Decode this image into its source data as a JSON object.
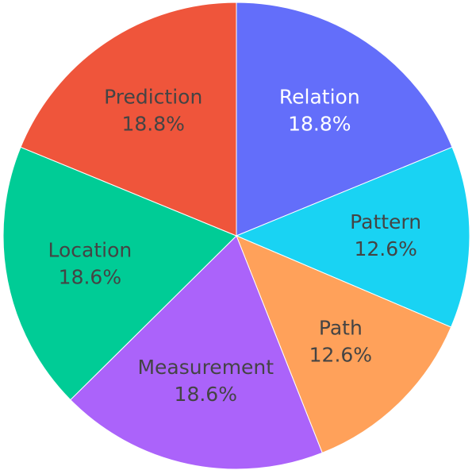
{
  "chart_data": {
    "type": "pie",
    "categories": [
      "Relation",
      "Pattern",
      "Path",
      "Measurement",
      "Location",
      "Prediction"
    ],
    "values": [
      18.8,
      12.6,
      12.6,
      18.6,
      18.6,
      18.8
    ],
    "percent_labels": [
      "18.8%",
      "12.6%",
      "12.6%",
      "18.6%",
      "18.6%",
      "18.8%"
    ],
    "colors": [
      "#636efa",
      "#19d3f3",
      "#ffa15a",
      "#ab63fa",
      "#00cc96",
      "#ef553b"
    ],
    "start_angle_deg": 0,
    "direction": "clockwise",
    "label_position": "inside",
    "label_colors": [
      "#ffffff",
      "#444444",
      "#444444",
      "#444444",
      "#444444",
      "#444444"
    ]
  }
}
